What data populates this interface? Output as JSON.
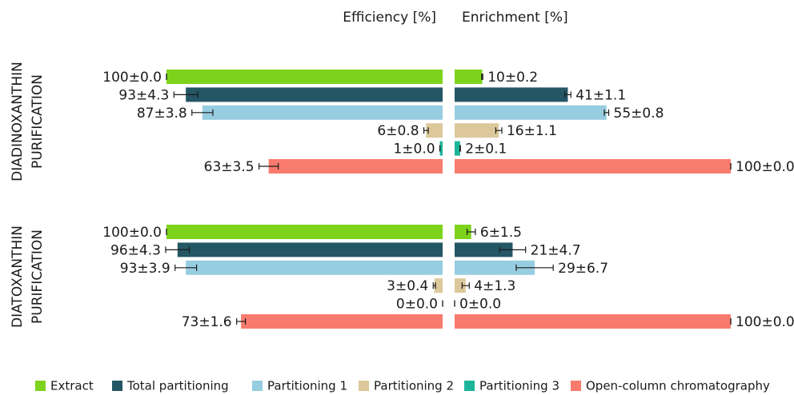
{
  "chart_data": {
    "type": "bar",
    "headers": [
      "Efficiency [%]",
      "Enrichment [%]"
    ],
    "groups": [
      [
        "DIADINOXANTHIN",
        "PURIFICATION"
      ],
      [
        "DIATOXANTHIN",
        "PURIFICATION"
      ]
    ],
    "xlim": [
      0,
      100
    ],
    "series": [
      {
        "name": "Extract",
        "color": "#7dd31c",
        "efficiency": [
          100,
          100
        ],
        "efficiency_error": [
          0.0,
          0.0
        ],
        "efficiency_labels": [
          "100±0.0",
          "100±0.0"
        ],
        "enrichment": [
          10,
          6
        ],
        "enrichment_error": [
          0.2,
          1.5
        ],
        "enrichment_labels": [
          "10±0.2",
          "6±1.5"
        ]
      },
      {
        "name": "Total partitioning",
        "color": "#245665",
        "efficiency": [
          93,
          96
        ],
        "efficiency_error": [
          4.3,
          4.3
        ],
        "efficiency_labels": [
          "93±4.3",
          "96±4.3"
        ],
        "enrichment": [
          41,
          21
        ],
        "enrichment_error": [
          1.1,
          4.7
        ],
        "enrichment_labels": [
          "41±1.1",
          "21±4.7"
        ]
      },
      {
        "name": "Partitioning 1",
        "color": "#97cde0",
        "efficiency": [
          87,
          93
        ],
        "efficiency_error": [
          3.8,
          3.9
        ],
        "efficiency_labels": [
          "87±3.8",
          "93±3.9"
        ],
        "enrichment": [
          55,
          29
        ],
        "enrichment_error": [
          0.8,
          6.7
        ],
        "enrichment_labels": [
          "55±0.8",
          "29±6.7"
        ]
      },
      {
        "name": "Partitioning 2",
        "color": "#dcc89a",
        "efficiency": [
          6,
          3
        ],
        "efficiency_error": [
          0.8,
          0.4
        ],
        "efficiency_labels": [
          "6±0.8",
          "3±0.4"
        ],
        "enrichment": [
          16,
          4
        ],
        "enrichment_error": [
          1.1,
          1.3
        ],
        "enrichment_labels": [
          "16±1.1",
          "4±1.3"
        ]
      },
      {
        "name": "Partitioning 3",
        "color": "#1cb59b",
        "efficiency": [
          1,
          0
        ],
        "efficiency_error": [
          0.0,
          0.0
        ],
        "efficiency_labels": [
          "1±0.0",
          "0±0.0"
        ],
        "enrichment": [
          2,
          0
        ],
        "enrichment_error": [
          0.1,
          0.0
        ],
        "enrichment_labels": [
          "2±0.1",
          "0±0.0"
        ]
      },
      {
        "name": "Open-column chromatography",
        "color": "#f97b6e",
        "efficiency": [
          63,
          73
        ],
        "efficiency_error": [
          3.5,
          1.6
        ],
        "efficiency_labels": [
          "63±3.5",
          "73±1.6"
        ],
        "enrichment": [
          100,
          100
        ],
        "enrichment_error": [
          0.0,
          0.0
        ],
        "enrichment_labels": [
          "100±0.0",
          "100±0.0"
        ]
      }
    ]
  }
}
